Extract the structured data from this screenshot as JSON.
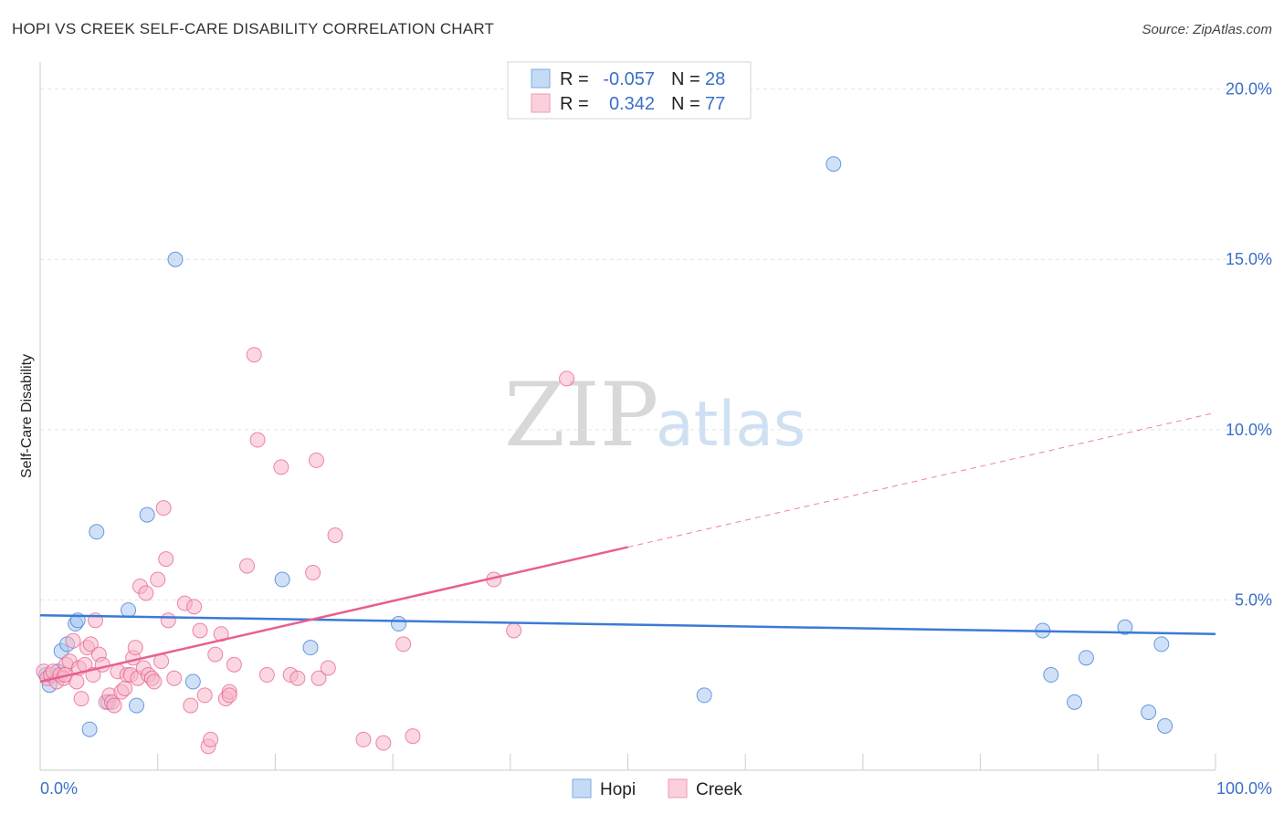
{
  "header": {
    "title": "HOPI VS CREEK SELF-CARE DISABILITY CORRELATION CHART",
    "source": "Source: ZipAtlas.com"
  },
  "watermark": {
    "zip": "ZIP",
    "atlas": "atlas"
  },
  "legend": {
    "rows": [
      {
        "r_label": "R =",
        "r_value": "-0.057",
        "n_label": "N =",
        "n_value": "28",
        "color": "#a9c9f0"
      },
      {
        "r_label": "R =",
        "r_value": "0.342",
        "n_label": "N =",
        "n_value": "77",
        "color": "#f6b6c8"
      }
    ]
  },
  "bottom_legend": {
    "hopi": "Hopi",
    "creek": "Creek"
  },
  "chart_data": {
    "type": "scatter",
    "title": "HOPI VS CREEK SELF-CARE DISABILITY CORRELATION CHART",
    "xlabel": "",
    "ylabel": "Self-Care Disability",
    "xlim": [
      0,
      100
    ],
    "ylim": [
      0,
      20.5
    ],
    "x_tick_labels": [
      {
        "value": 0,
        "label": "0.0%"
      },
      {
        "value": 100,
        "label": "100.0%"
      }
    ],
    "y_tick_labels": [
      {
        "value": 5,
        "label": "5.0%"
      },
      {
        "value": 10,
        "label": "10.0%"
      },
      {
        "value": 15,
        "label": "15.0%"
      },
      {
        "value": 20,
        "label": "20.0%"
      }
    ],
    "series": [
      {
        "name": "Hopi",
        "color": "#3a7bd5",
        "fill": "#a9c9f0",
        "r": -0.057,
        "n": 28,
        "trend": {
          "x0": 0,
          "y0": 4.55,
          "x1": 100,
          "y1": 4.0,
          "dashed_from": null
        },
        "points": [
          [
            0.5,
            2.8
          ],
          [
            0.8,
            2.5
          ],
          [
            1.5,
            2.9
          ],
          [
            1.8,
            3.5
          ],
          [
            2.3,
            3.7
          ],
          [
            3.0,
            4.3
          ],
          [
            3.2,
            4.4
          ],
          [
            4.2,
            1.2
          ],
          [
            4.8,
            7.0
          ],
          [
            5.8,
            2.0
          ],
          [
            7.5,
            4.7
          ],
          [
            8.2,
            1.9
          ],
          [
            9.1,
            7.5
          ],
          [
            11.5,
            15.0
          ],
          [
            13.0,
            2.6
          ],
          [
            20.6,
            5.6
          ],
          [
            23.0,
            3.6
          ],
          [
            30.5,
            4.3
          ],
          [
            67.5,
            17.8
          ],
          [
            56.5,
            2.2
          ],
          [
            85.3,
            4.1
          ],
          [
            86.0,
            2.8
          ],
          [
            88.0,
            2.0
          ],
          [
            89.0,
            3.3
          ],
          [
            92.3,
            4.2
          ],
          [
            94.3,
            1.7
          ],
          [
            95.4,
            3.7
          ],
          [
            95.7,
            1.3
          ]
        ]
      },
      {
        "name": "Creek",
        "color": "#e8608f",
        "fill": "#f6b6c8",
        "r": 0.342,
        "n": 77,
        "trend": {
          "x0": 0,
          "y0": 2.6,
          "x1": 100,
          "y1": 10.5,
          "dashed_from": 50
        },
        "points": [
          [
            0.3,
            2.9
          ],
          [
            0.6,
            2.7
          ],
          [
            0.9,
            2.8
          ],
          [
            1.1,
            2.9
          ],
          [
            1.4,
            2.6
          ],
          [
            1.7,
            2.8
          ],
          [
            2.0,
            2.7
          ],
          [
            2.2,
            3.1
          ],
          [
            2.5,
            3.2
          ],
          [
            2.8,
            3.8
          ],
          [
            3.1,
            2.6
          ],
          [
            3.3,
            3.0
          ],
          [
            3.5,
            2.1
          ],
          [
            3.8,
            3.1
          ],
          [
            4.0,
            3.6
          ],
          [
            4.3,
            3.7
          ],
          [
            4.5,
            2.8
          ],
          [
            4.7,
            4.4
          ],
          [
            5.0,
            3.4
          ],
          [
            5.3,
            3.1
          ],
          [
            5.6,
            2.0
          ],
          [
            5.9,
            2.2
          ],
          [
            6.1,
            2.0
          ],
          [
            6.3,
            1.9
          ],
          [
            6.6,
            2.9
          ],
          [
            6.9,
            2.3
          ],
          [
            7.2,
            2.4
          ],
          [
            7.4,
            2.8
          ],
          [
            7.7,
            2.8
          ],
          [
            7.9,
            3.3
          ],
          [
            8.1,
            3.6
          ],
          [
            8.3,
            2.7
          ],
          [
            8.5,
            5.4
          ],
          [
            8.8,
            3.0
          ],
          [
            9.0,
            5.2
          ],
          [
            9.2,
            2.8
          ],
          [
            9.5,
            2.7
          ],
          [
            9.7,
            2.6
          ],
          [
            10.0,
            5.6
          ],
          [
            10.3,
            3.2
          ],
          [
            10.5,
            7.7
          ],
          [
            10.7,
            6.2
          ],
          [
            10.9,
            4.4
          ],
          [
            11.4,
            2.7
          ],
          [
            12.3,
            4.9
          ],
          [
            12.8,
            1.9
          ],
          [
            13.1,
            4.8
          ],
          [
            13.6,
            4.1
          ],
          [
            14.0,
            2.2
          ],
          [
            14.3,
            0.7
          ],
          [
            14.5,
            0.9
          ],
          [
            14.9,
            3.4
          ],
          [
            15.4,
            4.0
          ],
          [
            15.8,
            2.1
          ],
          [
            16.1,
            2.3
          ],
          [
            16.5,
            3.1
          ],
          [
            17.6,
            6.0
          ],
          [
            18.2,
            12.2
          ],
          [
            18.5,
            9.7
          ],
          [
            19.3,
            2.8
          ],
          [
            20.5,
            8.9
          ],
          [
            21.3,
            2.8
          ],
          [
            21.9,
            2.7
          ],
          [
            23.2,
            5.8
          ],
          [
            23.5,
            9.1
          ],
          [
            23.7,
            2.7
          ],
          [
            24.5,
            3.0
          ],
          [
            25.1,
            6.9
          ],
          [
            27.5,
            0.9
          ],
          [
            29.2,
            0.8
          ],
          [
            30.9,
            3.7
          ],
          [
            31.7,
            1.0
          ],
          [
            44.8,
            11.5
          ],
          [
            38.6,
            5.6
          ],
          [
            40.3,
            4.1
          ],
          [
            16.1,
            2.2
          ],
          [
            2.1,
            2.8
          ]
        ]
      }
    ]
  }
}
